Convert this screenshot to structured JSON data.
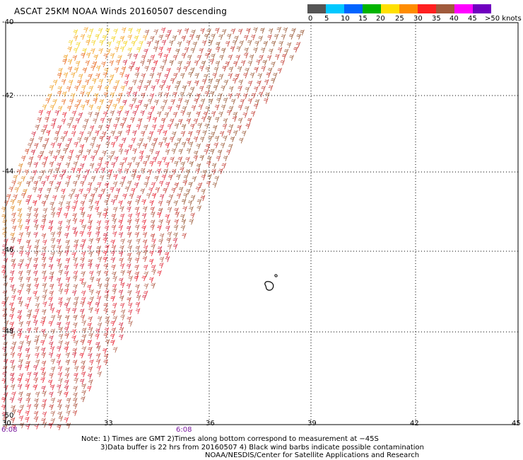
{
  "title": "ASCAT 25KM NOAA Winds 20160507 descending",
  "legend": {
    "colors": [
      "#555555",
      "#00c8ff",
      "#0064ff",
      "#00b400",
      "#ffe000",
      "#ff8c00",
      "#ff2020",
      "#a05a3c",
      "#ff00ff",
      "#7000c0"
    ],
    "labels": [
      "0",
      "5",
      "10",
      "15",
      "20",
      "25",
      "30",
      "35",
      "40",
      "45",
      ">50 knots"
    ]
  },
  "axes": {
    "lat_labels": [
      "-40",
      "-42",
      "-44",
      "-46",
      "-48",
      "-50"
    ],
    "lon_labels": [
      "30",
      "33",
      "36",
      "39",
      "42",
      "45"
    ]
  },
  "times": {
    "left": "6:08",
    "mid": "6:08"
  },
  "notes": {
    "line1": "Note: 1) Times are GMT 2)Times along bottom correspond to measurement at −45S",
    "line2": "3)Data buffer is 22 hrs from 20160507 4) Black wind barbs indicate possible contamination",
    "line3": "NOAA/NESDIS/Center for Satellite Applications and Research"
  },
  "map_extent": {
    "lon_min": 30,
    "lon_max": 45,
    "lat_max": -40,
    "lat_min": -50
  }
}
